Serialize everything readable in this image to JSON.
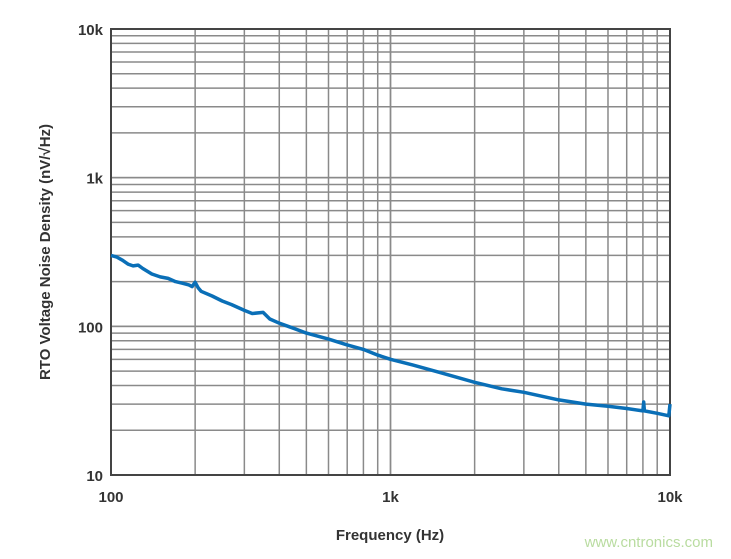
{
  "chart_data": {
    "type": "line",
    "xlabel": "Frequency (Hz)",
    "ylabel": "RTO Voltage Noise Density (nV/√Hz)",
    "xscale": "log",
    "yscale": "log",
    "xlim": [
      100,
      10000
    ],
    "ylim": [
      10,
      10000
    ],
    "xticks": [
      "100",
      "1k",
      "10k"
    ],
    "yticks": [
      "10",
      "100",
      "1k",
      "10k"
    ],
    "grid": true,
    "legend": "none",
    "series": [
      {
        "color": "#0a6fb7",
        "x": [
          100,
          105,
          110,
          115,
          120,
          125,
          130,
          140,
          150,
          160,
          170,
          180,
          190,
          195,
          200,
          205,
          210,
          230,
          250,
          270,
          300,
          320,
          350,
          370,
          400,
          450,
          500,
          600,
          700,
          800,
          900,
          1000,
          1200,
          1500,
          2000,
          2500,
          3000,
          4000,
          5000,
          6000,
          7000,
          8000,
          8050,
          8100,
          9000,
          9900,
          10000
        ],
        "y": [
          300,
          292,
          278,
          262,
          255,
          258,
          245,
          225,
          215,
          210,
          200,
          195,
          190,
          185,
          198,
          182,
          172,
          160,
          148,
          140,
          128,
          122,
          124,
          112,
          105,
          97,
          90,
          82,
          75,
          70,
          64,
          60,
          55,
          49,
          42,
          38,
          36,
          32,
          30,
          29,
          28,
          27,
          31,
          27,
          26,
          25,
          30
        ]
      }
    ]
  },
  "watermark": "www.cntronics.com"
}
